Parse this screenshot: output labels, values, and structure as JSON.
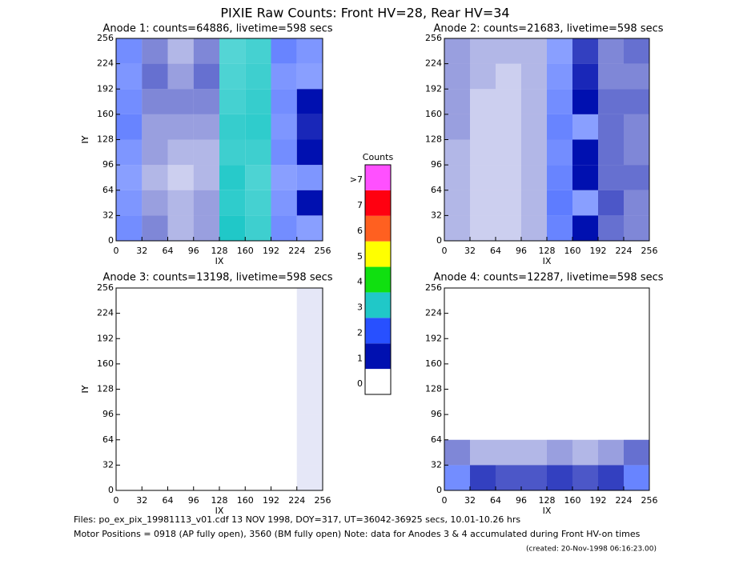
{
  "title": "PIXIE Raw Counts:  Front HV=28, Rear HV=34",
  "chart_data": [
    {
      "type": "heatmap",
      "title": "Anode 1: counts=64886, livetime=598 secs",
      "xlabel": "IX",
      "ylabel": "IY",
      "xlim": [
        0,
        256
      ],
      "ylim": [
        0,
        256
      ],
      "xticks": [
        0,
        32,
        64,
        96,
        128,
        160,
        192,
        224,
        256
      ],
      "yticks": [
        0,
        32,
        64,
        96,
        128,
        160,
        192,
        224,
        256
      ],
      "x_bins": [
        0,
        32,
        64,
        96,
        128,
        160,
        192,
        224,
        256
      ],
      "y_bins": [
        0,
        32,
        64,
        96,
        128,
        160,
        192,
        224,
        256
      ],
      "values": [
        [
          1.3,
          0.5,
          0.3,
          0.4,
          3.0,
          2.6,
          1.3,
          1.1
        ],
        [
          1.2,
          0.4,
          0.3,
          0.4,
          2.8,
          2.5,
          1.2,
          1.0
        ],
        [
          1.1,
          0.3,
          0.2,
          0.3,
          2.9,
          2.4,
          1.1,
          1.2
        ],
        [
          1.2,
          0.4,
          0.3,
          0.3,
          2.6,
          2.6,
          1.3,
          1.0
        ],
        [
          1.4,
          0.4,
          0.4,
          0.4,
          2.7,
          2.8,
          1.2,
          0.9
        ],
        [
          1.3,
          0.5,
          0.5,
          0.5,
          2.5,
          2.7,
          1.3,
          1.0
        ],
        [
          1.2,
          0.6,
          0.4,
          0.6,
          2.4,
          2.6,
          1.2,
          1.1
        ],
        [
          1.3,
          0.5,
          0.3,
          0.5,
          2.3,
          2.5,
          1.4,
          1.2
        ]
      ]
    },
    {
      "type": "heatmap",
      "title": "Anode 2: counts=21683, livetime=598 secs",
      "xlabel": "IX",
      "ylabel": "IY",
      "xlim": [
        0,
        256
      ],
      "ylim": [
        0,
        256
      ],
      "xticks": [
        0,
        32,
        64,
        96,
        128,
        160,
        192,
        224,
        256
      ],
      "yticks": [
        0,
        32,
        64,
        96,
        128,
        160,
        192,
        224,
        256
      ],
      "x_bins": [
        0,
        32,
        64,
        96,
        128,
        160,
        192,
        224,
        256
      ],
      "y_bins": [
        0,
        32,
        64,
        96,
        128,
        160,
        192,
        224,
        256
      ],
      "values": [
        [
          0.3,
          0.2,
          0.2,
          0.3,
          1.4,
          1.0,
          0.6,
          0.5
        ],
        [
          0.3,
          0.2,
          0.2,
          0.3,
          1.5,
          1.1,
          0.7,
          0.5
        ],
        [
          0.3,
          0.2,
          0.2,
          0.3,
          1.4,
          1.0,
          0.6,
          0.6
        ],
        [
          0.3,
          0.2,
          0.2,
          0.3,
          1.3,
          1.0,
          0.6,
          0.5
        ],
        [
          0.4,
          0.2,
          0.2,
          0.3,
          1.4,
          1.1,
          0.6,
          0.5
        ],
        [
          0.4,
          0.2,
          0.2,
          0.3,
          1.3,
          1.0,
          0.6,
          0.6
        ],
        [
          0.4,
          0.3,
          0.2,
          0.3,
          1.2,
          0.9,
          0.5,
          0.5
        ],
        [
          0.4,
          0.3,
          0.3,
          0.3,
          1.1,
          0.8,
          0.5,
          0.6
        ]
      ]
    },
    {
      "type": "heatmap",
      "title": "Anode 3: counts=13198, livetime=598 secs",
      "xlabel": "IX",
      "ylabel": "IY",
      "xlim": [
        0,
        256
      ],
      "ylim": [
        0,
        256
      ],
      "xticks": [
        0,
        32,
        64,
        96,
        128,
        160,
        192,
        224,
        256
      ],
      "yticks": [
        0,
        32,
        64,
        96,
        128,
        160,
        192,
        224,
        256
      ],
      "x_bins": [
        0,
        32,
        64,
        96,
        128,
        160,
        192,
        224,
        256
      ],
      "y_bins": [
        0,
        32,
        64,
        96,
        128,
        160,
        192,
        224,
        256
      ],
      "values": [
        [
          0,
          0,
          0,
          0,
          0,
          0,
          0,
          0.1
        ],
        [
          0,
          0,
          0,
          0,
          0,
          0,
          0,
          0.1
        ],
        [
          0,
          0,
          0,
          0,
          0,
          0,
          0,
          0.1
        ],
        [
          0,
          0,
          0,
          0,
          0,
          0,
          0,
          0.1
        ],
        [
          0,
          0,
          0,
          0,
          0,
          0,
          0,
          0.1
        ],
        [
          0,
          0,
          0,
          0,
          0,
          0,
          0,
          0.1
        ],
        [
          0,
          0,
          0,
          0,
          0,
          0,
          0,
          0.1
        ],
        [
          0,
          0,
          0,
          0,
          0,
          0,
          0,
          0.1
        ]
      ]
    },
    {
      "type": "heatmap",
      "title": "Anode 4: counts=12287, livetime=598 secs",
      "xlabel": "IX",
      "ylabel": "IY",
      "xlim": [
        0,
        256
      ],
      "ylim": [
        0,
        256
      ],
      "xticks": [
        0,
        32,
        64,
        96,
        128,
        160,
        192,
        224,
        256
      ],
      "yticks": [
        0,
        32,
        64,
        96,
        128,
        160,
        192,
        224,
        256
      ],
      "x_bins": [
        0,
        32,
        64,
        96,
        128,
        160,
        192,
        224,
        256
      ],
      "y_bins": [
        0,
        32,
        64,
        96,
        128,
        160,
        192,
        224,
        256
      ],
      "values": [
        [
          1.3,
          0.8,
          0.7,
          0.7,
          0.8,
          0.7,
          0.8,
          1.4
        ],
        [
          0.5,
          0.3,
          0.3,
          0.3,
          0.4,
          0.3,
          0.4,
          0.6
        ],
        [
          0,
          0,
          0,
          0,
          0,
          0,
          0,
          0
        ],
        [
          0,
          0,
          0,
          0,
          0,
          0,
          0,
          0
        ],
        [
          0,
          0,
          0,
          0,
          0,
          0,
          0,
          0
        ],
        [
          0,
          0,
          0,
          0,
          0,
          0,
          0,
          0
        ],
        [
          0,
          0,
          0,
          0,
          0,
          0,
          0,
          0
        ],
        [
          0,
          0,
          0,
          0,
          0,
          0,
          0,
          0
        ]
      ]
    }
  ],
  "colorbar": {
    "title": "Counts",
    "ticks": [
      0,
      1,
      2,
      3,
      4,
      5,
      6,
      7,
      {
        "value": 8,
        "label": ">7"
      }
    ],
    "colors": [
      "#ffffff",
      "#0010b0",
      "#2850ff",
      "#20c8c8",
      "#10e010",
      "#ffff00",
      "#ff6020",
      "#ff0010",
      "#ff50ff"
    ]
  },
  "footer": [
    "Files: po_ex_pix_19981113_v01.cdf    13 NOV 1998, DOY=317, UT=36042-36925 secs, 10.01-10.26 hrs",
    "Motor Positions = 0918 (AP fully open), 3560 (BM fully open)    Note: data for Anodes 3 & 4 accumulated during Front HV-on times",
    "(created: 20-Nov-1998 06:16:23.00)"
  ]
}
